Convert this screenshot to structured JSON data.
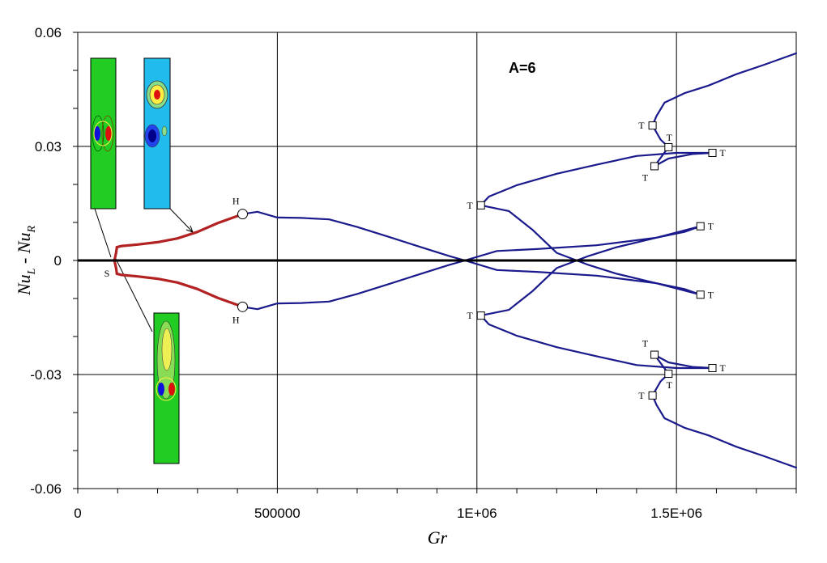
{
  "chart_data": {
    "type": "line",
    "title": "",
    "annotation": "A=6",
    "xlabel": "Gr",
    "ylabel_main": "Nu",
    "ylabel_sub_left": "L",
    "ylabel_mid": " - ",
    "ylabel_sub_right": "R",
    "xlim": [
      0,
      1800000
    ],
    "ylim": [
      -0.06,
      0.06
    ],
    "grid": true,
    "x_ticks": [
      {
        "value": 0,
        "label": "0"
      },
      {
        "value": 500000,
        "label": "500000"
      },
      {
        "value": 1000000,
        "label": "1E+06"
      },
      {
        "value": 1500000,
        "label": "1.5E+06"
      }
    ],
    "y_ticks": [
      {
        "value": 0.06,
        "label": "0.06"
      },
      {
        "value": 0.03,
        "label": "0.03"
      },
      {
        "value": 0,
        "label": "0"
      },
      {
        "value": -0.03,
        "label": "-0.03"
      },
      {
        "value": -0.06,
        "label": "-0.06"
      }
    ],
    "colors": {
      "stable_branch": "#b22222",
      "unstable_branch": "#1a1a8c",
      "zero_line": "#000000"
    },
    "series": [
      {
        "style": "stable",
        "points": [
          [
            98000,
            0.0035
          ],
          [
            110000,
            0.0038
          ],
          [
            150000,
            0.0042
          ],
          [
            200000,
            0.0048
          ],
          [
            250000,
            0.0058
          ],
          [
            300000,
            0.0075
          ],
          [
            350000,
            0.0098
          ],
          [
            413000,
            0.0122
          ]
        ]
      },
      {
        "style": "stable",
        "points": [
          [
            98000,
            -0.0035
          ],
          [
            110000,
            -0.0038
          ],
          [
            150000,
            -0.0042
          ],
          [
            200000,
            -0.0048
          ],
          [
            250000,
            -0.0058
          ],
          [
            300000,
            -0.0075
          ],
          [
            350000,
            -0.0098
          ],
          [
            413000,
            -0.0122
          ]
        ]
      },
      {
        "style": "stable",
        "points": [
          [
            92000,
            0
          ],
          [
            96000,
            0.002
          ],
          [
            98000,
            0.0035
          ]
        ]
      },
      {
        "style": "stable",
        "points": [
          [
            92000,
            0
          ],
          [
            96000,
            -0.002
          ],
          [
            98000,
            -0.0035
          ]
        ]
      },
      {
        "style": "unstable",
        "points": [
          [
            413000,
            0.0122
          ],
          [
            450000,
            0.0128
          ],
          [
            500000,
            0.0113
          ],
          [
            560000,
            0.0112
          ],
          [
            630000,
            0.0108
          ],
          [
            700000,
            0.0088
          ],
          [
            780000,
            0.0062
          ],
          [
            860000,
            0.0035
          ],
          [
            930000,
            0.0012
          ],
          [
            970000,
            0.0
          ]
        ]
      },
      {
        "style": "unstable",
        "points": [
          [
            413000,
            -0.0122
          ],
          [
            450000,
            -0.0128
          ],
          [
            500000,
            -0.0113
          ],
          [
            560000,
            -0.0112
          ],
          [
            630000,
            -0.0108
          ],
          [
            700000,
            -0.0088
          ],
          [
            780000,
            -0.0062
          ],
          [
            860000,
            -0.0035
          ],
          [
            930000,
            -0.0012
          ],
          [
            970000,
            0.0
          ]
        ]
      },
      {
        "style": "unstable",
        "points": [
          [
            970000,
            0.0
          ],
          [
            1050000,
            0.0025
          ],
          [
            1150000,
            0.003
          ],
          [
            1300000,
            0.004
          ],
          [
            1450000,
            0.006
          ],
          [
            1560000,
            0.009
          ]
        ]
      },
      {
        "style": "unstable",
        "points": [
          [
            970000,
            0.0
          ],
          [
            1050000,
            -0.0025
          ],
          [
            1150000,
            -0.003
          ],
          [
            1300000,
            -0.004
          ],
          [
            1450000,
            -0.006
          ],
          [
            1560000,
            -0.009
          ]
        ]
      },
      {
        "style": "unstable",
        "points": [
          [
            1560000,
            0.009
          ],
          [
            1520000,
            0.0075
          ],
          [
            1450000,
            0.006
          ],
          [
            1350000,
            0.0035
          ],
          [
            1280000,
            0.0012
          ],
          [
            1200000,
            -0.002
          ],
          [
            1140000,
            -0.008
          ],
          [
            1080000,
            -0.013
          ],
          [
            1010000,
            -0.0145
          ]
        ]
      },
      {
        "style": "unstable",
        "points": [
          [
            1560000,
            -0.009
          ],
          [
            1520000,
            -0.0075
          ],
          [
            1450000,
            -0.006
          ],
          [
            1350000,
            -0.0035
          ],
          [
            1280000,
            -0.0012
          ],
          [
            1200000,
            0.002
          ],
          [
            1140000,
            0.008
          ],
          [
            1080000,
            0.013
          ],
          [
            1010000,
            0.0145
          ]
        ]
      },
      {
        "style": "unstable",
        "points": [
          [
            1010000,
            0.0145
          ],
          [
            1030000,
            0.0168
          ],
          [
            1100000,
            0.0198
          ],
          [
            1200000,
            0.0228
          ],
          [
            1300000,
            0.0252
          ],
          [
            1400000,
            0.0275
          ],
          [
            1500000,
            0.0283
          ],
          [
            1590000,
            0.0283
          ]
        ]
      },
      {
        "style": "unstable",
        "points": [
          [
            1590000,
            0.0283
          ],
          [
            1540000,
            0.028
          ],
          [
            1480000,
            0.0268
          ],
          [
            1445000,
            0.0248
          ],
          [
            1480000,
            0.0298
          ],
          [
            1460000,
            0.0318
          ],
          [
            1440000,
            0.0355
          ],
          [
            1450000,
            0.038
          ],
          [
            1470000,
            0.0415
          ],
          [
            1520000,
            0.044
          ],
          [
            1580000,
            0.046
          ],
          [
            1650000,
            0.049
          ],
          [
            1720000,
            0.0515
          ],
          [
            1800000,
            0.0545
          ]
        ]
      },
      {
        "style": "unstable",
        "points": [
          [
            1010000,
            -0.0145
          ],
          [
            1030000,
            -0.0168
          ],
          [
            1100000,
            -0.0198
          ],
          [
            1200000,
            -0.0228
          ],
          [
            1300000,
            -0.0252
          ],
          [
            1400000,
            -0.0275
          ],
          [
            1500000,
            -0.0283
          ],
          [
            1590000,
            -0.0283
          ]
        ]
      },
      {
        "style": "unstable",
        "points": [
          [
            1590000,
            -0.0283
          ],
          [
            1540000,
            -0.028
          ],
          [
            1480000,
            -0.0268
          ],
          [
            1445000,
            -0.0248
          ],
          [
            1480000,
            -0.0298
          ],
          [
            1460000,
            -0.0318
          ],
          [
            1440000,
            -0.0355
          ],
          [
            1450000,
            -0.038
          ],
          [
            1470000,
            -0.0415
          ],
          [
            1520000,
            -0.044
          ],
          [
            1580000,
            -0.046
          ],
          [
            1650000,
            -0.049
          ],
          [
            1720000,
            -0.0515
          ],
          [
            1800000,
            -0.0545
          ]
        ]
      }
    ],
    "markers": [
      {
        "shape": "circle",
        "label": "H",
        "x": 413000,
        "y": 0.0122,
        "label_pos": "above-left"
      },
      {
        "shape": "circle",
        "label": "H",
        "x": 413000,
        "y": -0.0122,
        "label_pos": "below-left"
      },
      {
        "shape": "none",
        "label": "S",
        "x": 92000,
        "y": 0.0,
        "label_pos": "below-left"
      },
      {
        "shape": "square",
        "label": "T",
        "x": 1010000,
        "y": 0.0145,
        "label_pos": "left"
      },
      {
        "shape": "square",
        "label": "T",
        "x": 1010000,
        "y": -0.0145,
        "label_pos": "left"
      },
      {
        "shape": "square",
        "label": "T",
        "x": 1560000,
        "y": 0.009,
        "label_pos": "right"
      },
      {
        "shape": "square",
        "label": "T",
        "x": 1560000,
        "y": -0.009,
        "label_pos": "right"
      },
      {
        "shape": "square",
        "label": "T",
        "x": 1590000,
        "y": 0.0283,
        "label_pos": "right"
      },
      {
        "shape": "square",
        "label": "T",
        "x": 1590000,
        "y": -0.0283,
        "label_pos": "right"
      },
      {
        "shape": "square",
        "label": "T",
        "x": 1445000,
        "y": 0.0248,
        "label_pos": "below-left"
      },
      {
        "shape": "square",
        "label": "T",
        "x": 1445000,
        "y": -0.0248,
        "label_pos": "above-left"
      },
      {
        "shape": "square",
        "label": "T",
        "x": 1480000,
        "y": 0.0298,
        "label_pos": "above"
      },
      {
        "shape": "square",
        "label": "T",
        "x": 1480000,
        "y": -0.0298,
        "label_pos": "below"
      },
      {
        "shape": "square",
        "label": "T",
        "x": 1440000,
        "y": 0.0355,
        "label_pos": "left"
      },
      {
        "shape": "square",
        "label": "T",
        "x": 1440000,
        "y": -0.0355,
        "label_pos": "left"
      }
    ],
    "insets": [
      {
        "name": "inset-symmetric",
        "background": "#22cc22",
        "pattern": "center-pair"
      },
      {
        "name": "inset-top-vortex",
        "background": "#22bbee",
        "pattern": "stacked-pair"
      },
      {
        "name": "inset-bottom-plume",
        "background": "#22cc22",
        "pattern": "plume"
      }
    ]
  }
}
